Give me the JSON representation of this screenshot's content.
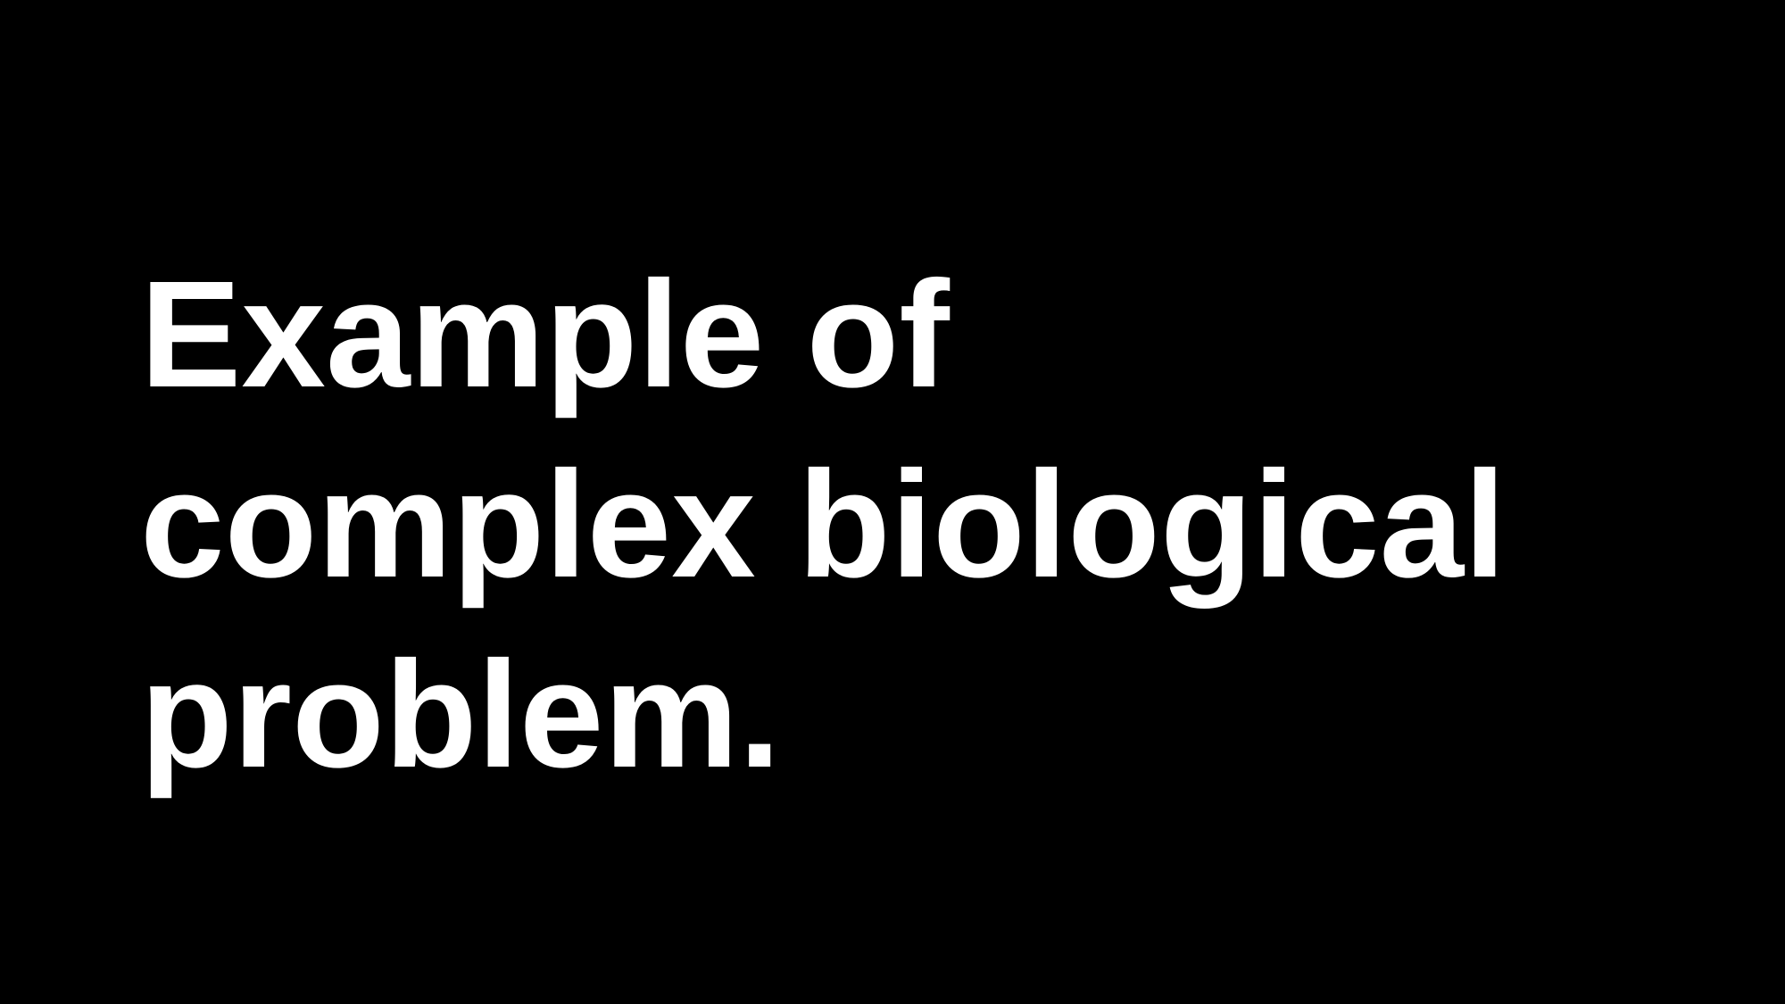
{
  "slide": {
    "background_color": "#000000",
    "text_color": "#ffffff",
    "title_lines": [
      "Example of",
      "complex biological",
      "problem."
    ]
  }
}
